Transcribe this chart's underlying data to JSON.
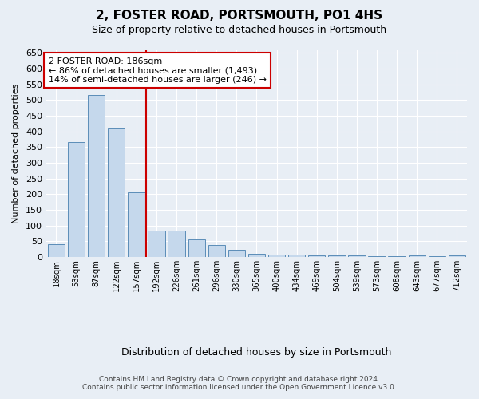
{
  "title": "2, FOSTER ROAD, PORTSMOUTH, PO1 4HS",
  "subtitle": "Size of property relative to detached houses in Portsmouth",
  "xlabel": "Distribution of detached houses by size in Portsmouth",
  "ylabel": "Number of detached properties",
  "categories": [
    "18sqm",
    "53sqm",
    "87sqm",
    "122sqm",
    "157sqm",
    "192sqm",
    "226sqm",
    "261sqm",
    "296sqm",
    "330sqm",
    "365sqm",
    "400sqm",
    "434sqm",
    "469sqm",
    "504sqm",
    "539sqm",
    "573sqm",
    "608sqm",
    "643sqm",
    "677sqm",
    "712sqm"
  ],
  "values": [
    40,
    365,
    515,
    410,
    207,
    83,
    83,
    55,
    38,
    22,
    10,
    8,
    7,
    6,
    5,
    4,
    3,
    2,
    5,
    2,
    5
  ],
  "bar_color": "#c5d8ec",
  "bar_edge_color": "#5b8db8",
  "vline_position": 4.5,
  "vline_color": "#cc0000",
  "annotation_title": "2 FOSTER ROAD: 186sqm",
  "annotation_line1": "← 86% of detached houses are smaller (1,493)",
  "annotation_line2": "14% of semi-detached houses are larger (246) →",
  "background_color": "#e8eef5",
  "grid_color": "#ffffff",
  "ylim": [
    0,
    660
  ],
  "yticks": [
    0,
    50,
    100,
    150,
    200,
    250,
    300,
    350,
    400,
    450,
    500,
    550,
    600,
    650
  ],
  "footer_line1": "Contains HM Land Registry data © Crown copyright and database right 2024.",
  "footer_line2": "Contains public sector information licensed under the Open Government Licence v3.0."
}
